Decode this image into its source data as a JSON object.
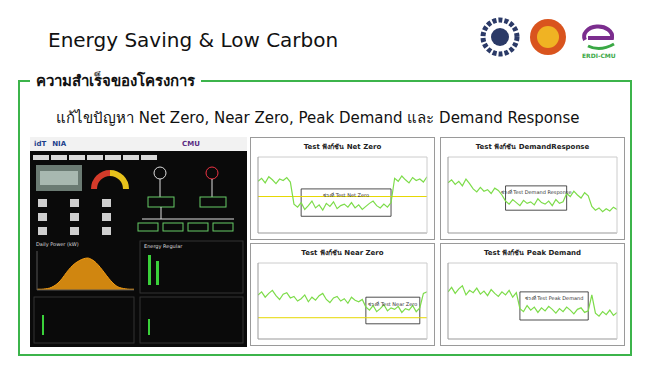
{
  "slide": {
    "title": "Energy Saving & Low Carbon",
    "logo_text": "ERDI-CMU",
    "heading": "ความสำเร็จของโครงการ",
    "subheading": "แก้ไขปัญหา Net Zero, Near Zero, Peak Demand และ Demand Response"
  },
  "dashboard": {
    "header_logos": [
      "idT",
      "NIA",
      "CMU"
    ],
    "panels": [
      "Daily Power (kW)",
      "Energy Regular"
    ],
    "daily_power": {
      "type": "area",
      "x": [
        0,
        1,
        2,
        3,
        4,
        5,
        6,
        7,
        8,
        9,
        10,
        11,
        12,
        13,
        14,
        15,
        16,
        17,
        18,
        19,
        20,
        21,
        22,
        23
      ],
      "values": [
        2,
        2,
        3,
        5,
        10,
        18,
        30,
        45,
        58,
        68,
        75,
        80,
        82,
        78,
        70,
        58,
        44,
        30,
        18,
        9,
        5,
        3,
        2,
        2
      ],
      "color": "#f39c12",
      "xlim": [
        0,
        23
      ],
      "ylim": [
        0,
        100
      ],
      "tick_labels": false
    }
  },
  "chart_data": [
    {
      "type": "line",
      "title": "Test ฟังก์ชัน Net Zero",
      "annotation": "ช่วงที่ Test Net Zero",
      "x": [
        0,
        1,
        2,
        3,
        4,
        5,
        6,
        7,
        8,
        9,
        10,
        11,
        12,
        13,
        14,
        15,
        16,
        17,
        18,
        19,
        20,
        21,
        22,
        23,
        24,
        25,
        26,
        27,
        28,
        29,
        30,
        31,
        32,
        33,
        34,
        35,
        36,
        37,
        38,
        39,
        40,
        41,
        42,
        43,
        44,
        45,
        46,
        47
      ],
      "values": [
        68,
        72,
        66,
        74,
        70,
        65,
        71,
        69,
        73,
        67,
        38,
        34,
        40,
        31,
        36,
        42,
        33,
        37,
        30,
        39,
        35,
        41,
        32,
        36,
        38,
        34,
        40,
        33,
        37,
        31,
        35,
        39,
        42,
        36,
        33,
        38,
        34,
        40,
        72,
        68,
        75,
        70,
        66,
        73,
        69,
        71,
        67,
        74
      ],
      "color": "#7ddc4a",
      "reference_line": 48,
      "highlight": {
        "x": [
          12,
          37
        ],
        "y": [
          22,
          58
        ]
      },
      "xlim": [
        0,
        47
      ],
      "ylim": [
        0,
        100
      ],
      "tick_labels": false,
      "grid": false
    },
    {
      "type": "line",
      "title": "Test ฟังก์ชัน DemandResponse",
      "annotation": "ช่วงที่ Test Demand Response",
      "x": [
        0,
        1,
        2,
        3,
        4,
        5,
        6,
        7,
        8,
        9,
        10,
        11,
        12,
        13,
        14,
        15,
        16,
        17,
        18,
        19,
        20,
        21,
        22,
        23,
        24,
        25,
        26,
        27,
        28,
        29,
        30,
        31,
        32,
        33,
        34,
        35,
        36,
        37,
        38,
        39,
        40,
        41,
        42,
        43,
        44,
        45,
        46,
        47
      ],
      "values": [
        66,
        70,
        64,
        68,
        62,
        71,
        65,
        58,
        54,
        60,
        55,
        57,
        52,
        59,
        56,
        50,
        42,
        38,
        44,
        40,
        36,
        43,
        39,
        41,
        37,
        45,
        40,
        38,
        42,
        36,
        44,
        39,
        41,
        52,
        48,
        55,
        50,
        46,
        53,
        49,
        35,
        30,
        33,
        28,
        32,
        29,
        34,
        31
      ],
      "color": "#7ddc4a",
      "highlight": {
        "x": [
          16,
          33
        ],
        "y": [
          30,
          62
        ]
      },
      "xlim": [
        0,
        47
      ],
      "ylim": [
        0,
        100
      ],
      "tick_labels": false,
      "grid": false
    },
    {
      "type": "line",
      "title": "Test ฟังก์ชัน Near Zero",
      "annotation": "ช่วงที่ Test Near Zero",
      "x": [
        0,
        1,
        2,
        3,
        4,
        5,
        6,
        7,
        8,
        9,
        10,
        11,
        12,
        13,
        14,
        15,
        16,
        17,
        18,
        19,
        20,
        21,
        22,
        23,
        24,
        25,
        26,
        27,
        28,
        29,
        30,
        31,
        32,
        33,
        34,
        35,
        36,
        37,
        38,
        39,
        40,
        41,
        42,
        43,
        44,
        45,
        46,
        47
      ],
      "values": [
        58,
        62,
        55,
        60,
        64,
        57,
        52,
        59,
        61,
        54,
        56,
        50,
        53,
        58,
        49,
        55,
        51,
        57,
        60,
        52,
        48,
        54,
        56,
        50,
        53,
        47,
        55,
        51,
        49,
        52,
        42,
        38,
        44,
        36,
        40,
        45,
        37,
        41,
        39,
        43,
        35,
        40,
        38,
        44,
        36,
        41,
        60,
        62
      ],
      "color": "#7ddc4a",
      "reference_line": 28,
      "highlight": {
        "x": [
          30,
          45
        ],
        "y": [
          20,
          55
        ]
      },
      "xlim": [
        0,
        47
      ],
      "ylim": [
        0,
        100
      ],
      "tick_labels": false,
      "grid": false
    },
    {
      "type": "line",
      "title": "Test ฟังก์ชัน Peak Demand",
      "annotation": "ช่วงที่ Test Peak Demand",
      "x": [
        0,
        1,
        2,
        3,
        4,
        5,
        6,
        7,
        8,
        9,
        10,
        11,
        12,
        13,
        14,
        15,
        16,
        17,
        18,
        19,
        20,
        21,
        22,
        23,
        24,
        25,
        26,
        27,
        28,
        29,
        30,
        31,
        32,
        33,
        34,
        35,
        36,
        37,
        38,
        39,
        40,
        41,
        42,
        43,
        44,
        45,
        46,
        47
      ],
      "values": [
        62,
        68,
        60,
        66,
        70,
        58,
        64,
        61,
        67,
        59,
        63,
        57,
        65,
        60,
        56,
        62,
        58,
        64,
        55,
        61,
        40,
        36,
        44,
        38,
        42,
        35,
        41,
        37,
        43,
        39,
        34,
        40,
        36,
        42,
        38,
        33,
        39,
        41,
        35,
        37,
        58,
        34,
        30,
        36,
        32,
        38,
        31,
        35
      ],
      "color": "#7ddc4a",
      "highlight": {
        "x": [
          20,
          39
        ],
        "y": [
          25,
          62
        ]
      },
      "xlim": [
        0,
        47
      ],
      "ylim": [
        0,
        100
      ],
      "tick_labels": false,
      "grid": false
    }
  ]
}
